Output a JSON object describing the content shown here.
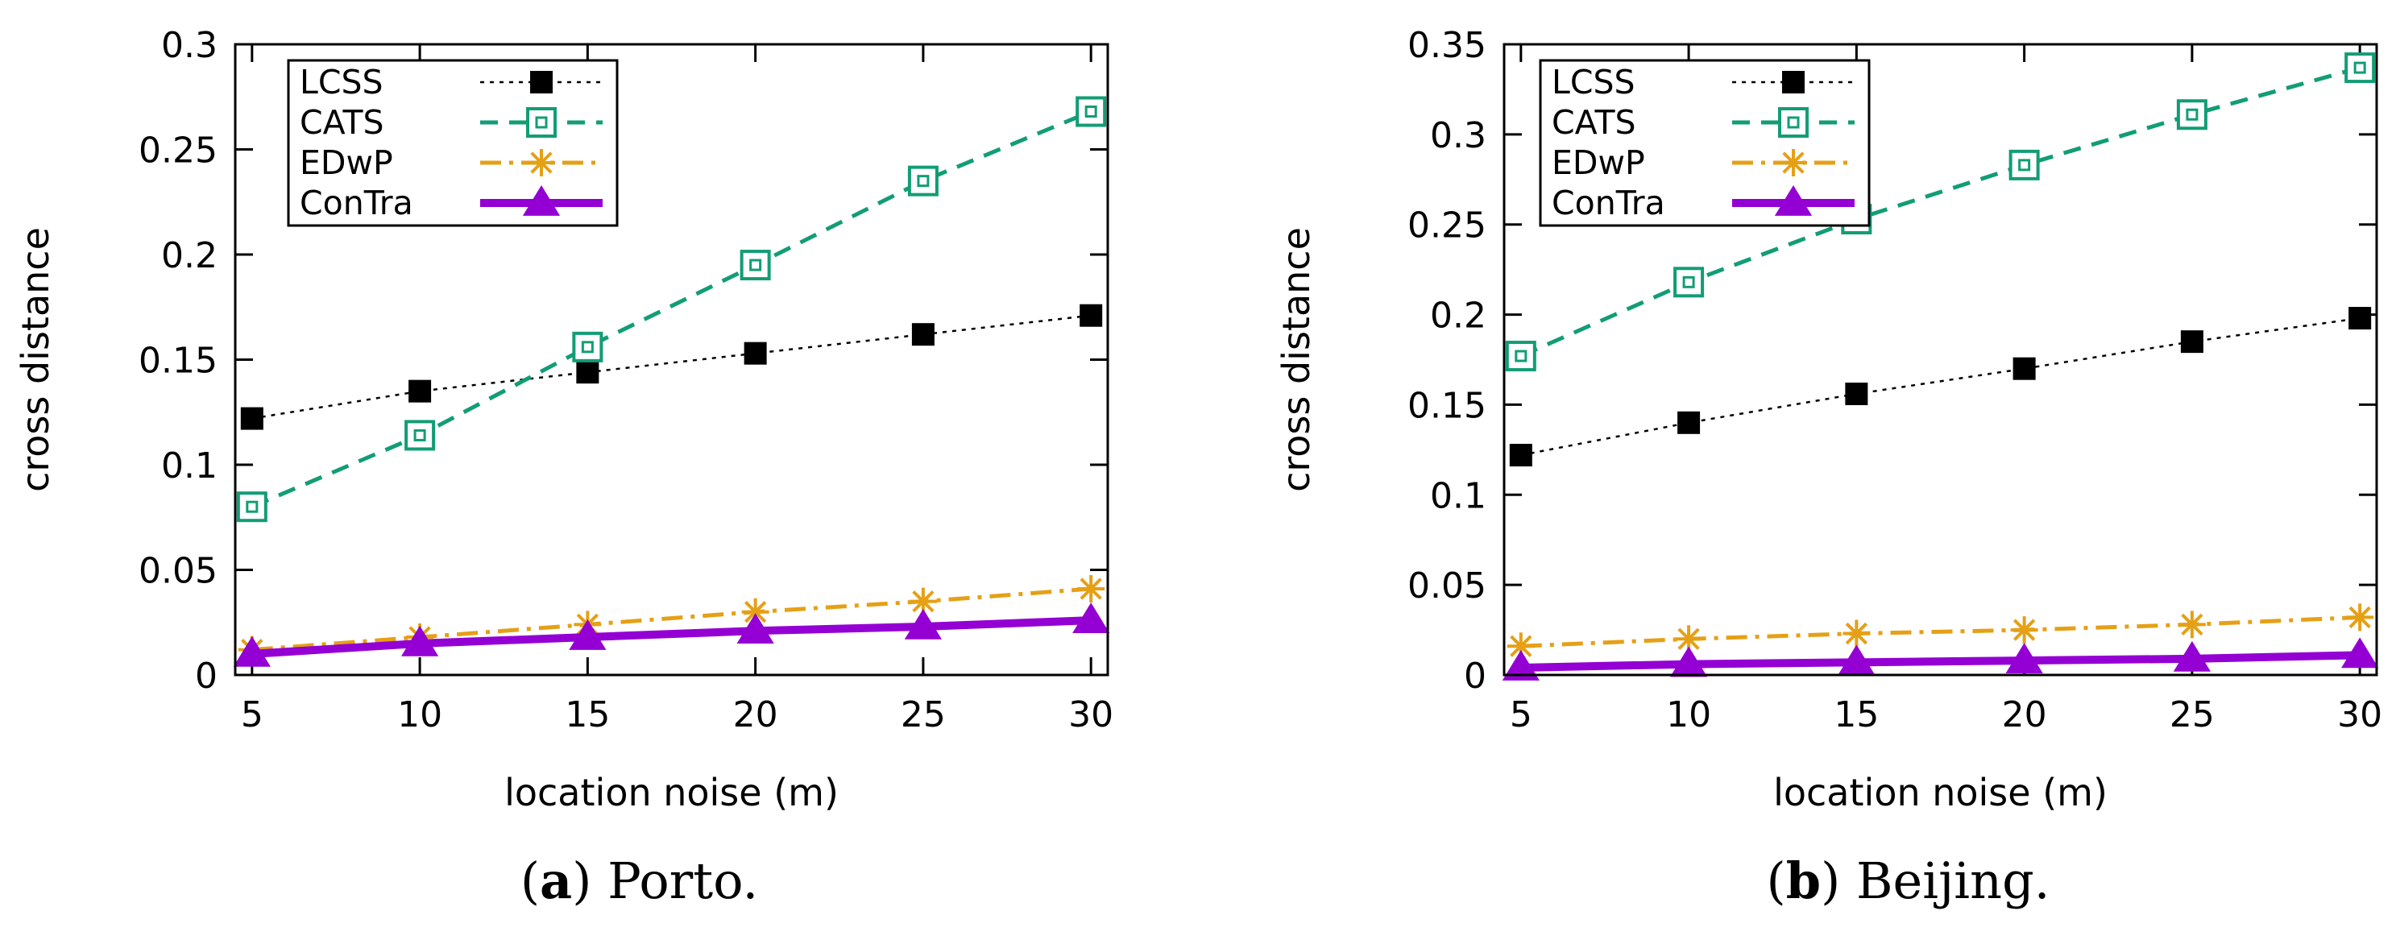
{
  "chart_data": [
    {
      "type": "line",
      "caption_label": "a",
      "caption_text": "Porto.",
      "xlabel": "location noise (m)",
      "ylabel": "cross distance",
      "x": [
        5,
        10,
        15,
        20,
        25,
        30
      ],
      "xticks": [
        5,
        10,
        15,
        20,
        25,
        30
      ],
      "xlim": [
        4.5,
        30.5
      ],
      "ylim": [
        0,
        0.3
      ],
      "yticks": [
        0,
        0.05,
        0.1,
        0.15,
        0.2,
        0.25,
        0.3
      ],
      "ytick_labels": [
        "0",
        "0.05",
        "0.1",
        "0.15",
        "0.2",
        "0.25",
        "0.3"
      ],
      "legend_position": "top-left",
      "series": [
        {
          "name": "LCSS",
          "values": [
            0.122,
            0.135,
            0.144,
            0.153,
            0.162,
            0.171
          ]
        },
        {
          "name": "CATS",
          "values": [
            0.08,
            0.114,
            0.156,
            0.195,
            0.235,
            0.268
          ]
        },
        {
          "name": "EDwP",
          "values": [
            0.012,
            0.018,
            0.024,
            0.03,
            0.035,
            0.041
          ]
        },
        {
          "name": "ConTra",
          "values": [
            0.01,
            0.015,
            0.018,
            0.021,
            0.023,
            0.026
          ]
        }
      ]
    },
    {
      "type": "line",
      "caption_label": "b",
      "caption_text": "Beijing.",
      "xlabel": "location noise (m)",
      "ylabel": "cross distance",
      "x": [
        5,
        10,
        15,
        20,
        25,
        30
      ],
      "xticks": [
        5,
        10,
        15,
        20,
        25,
        30
      ],
      "xlim": [
        4.5,
        30.5
      ],
      "ylim": [
        0,
        0.35
      ],
      "yticks": [
        0,
        0.05,
        0.1,
        0.15,
        0.2,
        0.25,
        0.3,
        0.35
      ],
      "ytick_labels": [
        "0",
        "0.05",
        "0.1",
        "0.15",
        "0.2",
        "0.25",
        "0.3",
        "0.35"
      ],
      "legend_position": "top-left",
      "series": [
        {
          "name": "LCSS",
          "values": [
            0.122,
            0.14,
            0.156,
            0.17,
            0.185,
            0.198
          ]
        },
        {
          "name": "CATS",
          "values": [
            0.177,
            0.218,
            0.253,
            0.283,
            0.311,
            0.337
          ]
        },
        {
          "name": "EDwP",
          "values": [
            0.016,
            0.02,
            0.023,
            0.025,
            0.028,
            0.032
          ]
        },
        {
          "name": "ConTra",
          "values": [
            0.004,
            0.006,
            0.007,
            0.008,
            0.009,
            0.011
          ]
        }
      ]
    }
  ],
  "series_styles": {
    "LCSS": {
      "color": "#000000",
      "marker": "filled-square",
      "dash": "5,7",
      "width": 2.5
    },
    "CATS": {
      "color": "#129d75",
      "marker": "boxed-square",
      "dash": "22,14",
      "width": 5
    },
    "EDwP": {
      "color": "#e5a016",
      "marker": "star",
      "dash": "26,10,5,10",
      "width": 5
    },
    "ConTra": {
      "color": "#9400d3",
      "marker": "triangle",
      "dash": "",
      "width": 10
    }
  }
}
